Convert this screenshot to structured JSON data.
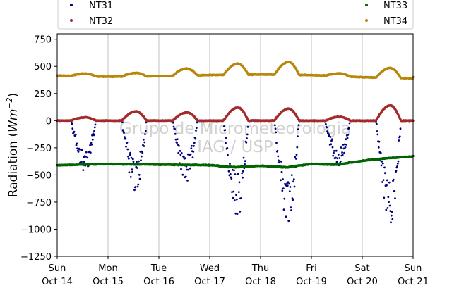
{
  "chart_data": {
    "type": "scatter",
    "title": "",
    "xlabel": "",
    "ylabel": "Radiation (Wm⁻²)",
    "ylabel_parts": {
      "prefix": "Radiation (",
      "var": "Wm",
      "exp": "−2",
      "suffix": ")"
    },
    "ylim": [
      -1250,
      800
    ],
    "yticks": [
      -1250,
      -1000,
      -750,
      -500,
      -250,
      0,
      250,
      500,
      750
    ],
    "ytick_labels": [
      "−1250",
      "−1000",
      "−750",
      "−500",
      "−250",
      "0",
      "250",
      "500",
      "750"
    ],
    "xlim_days": [
      0,
      7
    ],
    "xticks": [
      {
        "day": "Sun",
        "date": "Oct-14"
      },
      {
        "day": "Mon",
        "date": "Oct-15"
      },
      {
        "day": "Tue",
        "date": "Oct-16"
      },
      {
        "day": "Wed",
        "date": "Oct-17"
      },
      {
        "day": "Thu",
        "date": "Oct-18"
      },
      {
        "day": "Fri",
        "date": "Oct-19"
      },
      {
        "day": "Sat",
        "date": "Oct-20"
      },
      {
        "day": "Sun",
        "date": "Oct-21"
      }
    ],
    "grid": "vertical",
    "legend_position": "top",
    "watermark": [
      "Grupo de Micrometeorologia",
      "IAG / USP"
    ],
    "series": [
      {
        "name": "NT31",
        "color": "#00007f",
        "baseline": 0,
        "daily_min": [
          -480,
          -680,
          -560,
          -900,
          -940,
          -440,
          -980
        ],
        "peak_day_fraction": 0.55
      },
      {
        "name": "NT32",
        "color": "#a52a2a",
        "baseline": 0,
        "daily_max": [
          30,
          85,
          75,
          120,
          110,
          35,
          140
        ],
        "peak_day_fraction": 0.55
      },
      {
        "name": "NT33",
        "color": "#006400",
        "points": [
          [
            0,
            -410
          ],
          [
            1,
            -400
          ],
          [
            2,
            -405
          ],
          [
            3,
            -410
          ],
          [
            3.5,
            -430
          ],
          [
            4,
            -415
          ],
          [
            4.5,
            -430
          ],
          [
            5,
            -400
          ],
          [
            5.5,
            -405
          ],
          [
            6,
            -370
          ],
          [
            6.5,
            -345
          ],
          [
            7,
            -330
          ]
        ]
      },
      {
        "name": "NT34",
        "color": "#b8860b",
        "baseline": [
          415,
          405,
          410,
          420,
          425,
          420,
          400,
          390
        ],
        "daily_max": [
          435,
          440,
          480,
          525,
          540,
          435,
          485
        ],
        "peak_day_fraction": 0.55
      }
    ]
  }
}
